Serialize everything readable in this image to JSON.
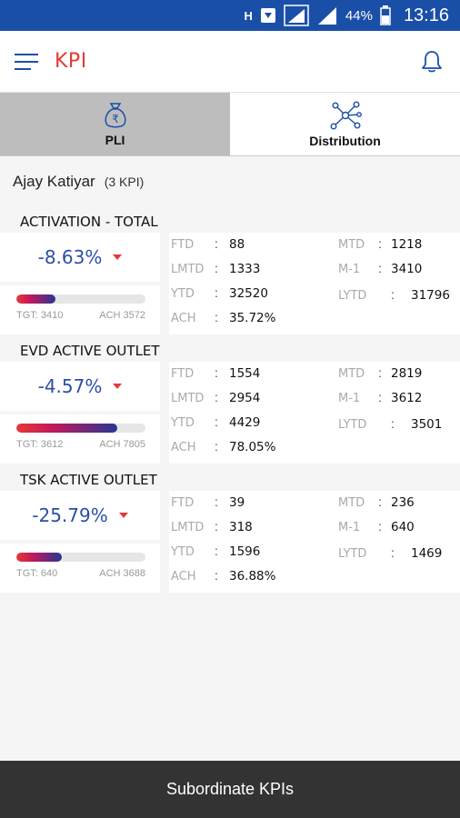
{
  "status_bar": {
    "network": "H",
    "battery_pct": "44%",
    "time": "13:16"
  },
  "app_bar": {
    "title": "KPI"
  },
  "tabs": [
    {
      "label": "PLI",
      "active": true
    },
    {
      "label": "Distribution",
      "active": false
    }
  ],
  "user": {
    "name": "Ajay Katiyar",
    "kpi_count": "(3 KPI)"
  },
  "kpis": [
    {
      "title": "ACTIVATION - TOTAL",
      "change": "-8.63%",
      "progress": 0.3,
      "tgt": "TGT: 3410",
      "ach": "ACH 3572",
      "ftd": "88",
      "lmtd": "1333",
      "ytd": "32520",
      "ach_pct": "35.72%",
      "mtd": "1218",
      "m1": "3410",
      "lytd": "31796"
    },
    {
      "title": "EVD ACTIVE OUTLET",
      "change": "-4.57%",
      "progress": 0.78,
      "tgt": "TGT: 3612",
      "ach": "ACH 7805",
      "ftd": "1554",
      "lmtd": "2954",
      "ytd": "4429",
      "ach_pct": "78.05%",
      "mtd": "2819",
      "m1": "3612",
      "lytd": "3501"
    },
    {
      "title": "TSK ACTIVE OUTLET",
      "change": "-25.79%",
      "progress": 0.35,
      "tgt": "TGT: 640",
      "ach": "ACH 3688",
      "ftd": "39",
      "lmtd": "318",
      "ytd": "1596",
      "ach_pct": "36.88%",
      "mtd": "236",
      "m1": "640",
      "lytd": "1469"
    }
  ],
  "labels": {
    "ftd": "FTD",
    "lmtd": "LMTD",
    "ytd": "YTD",
    "ach": "ACH",
    "mtd": "MTD",
    "m1": "M-1",
    "lytd": "LYTD",
    "sep": ":"
  },
  "bottom_bar": {
    "label": "Subordinate KPIs"
  },
  "colors": {
    "accent": "#1a4fa8",
    "title_red": "#e53935",
    "pct_blue": "#2b4ea8"
  },
  "icons": {
    "menu": "hamburger-icon",
    "bell": "bell-icon",
    "pli": "rupee-bag-icon",
    "distribution": "network-icon"
  }
}
